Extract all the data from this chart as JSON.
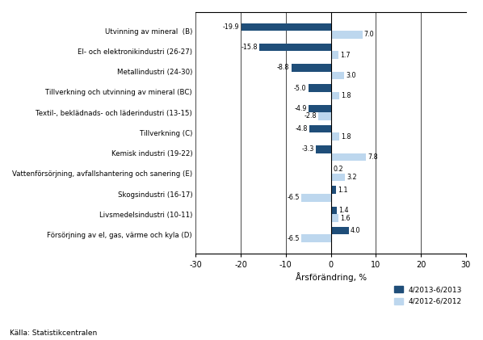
{
  "categories": [
    "Utvinning av mineral  (B)",
    "El- och elektronikindustri (26-27)",
    "Metallindustri (24-30)",
    "Tillverkning och utvinning av mineral (BC)",
    "Textil-, beklädnads- och läderindustri (13-15)",
    "Tillverkning (C)",
    "Kemisk industri (19-22)",
    "Vattenförsörjning, avfallshantering och sanering (E)",
    "Skogsindustri (16-17)",
    "Livsmedelsindustri (10-11)",
    "Försörjning av el, gas, värme och kyla (D)"
  ],
  "values_2013": [
    -19.9,
    -15.8,
    -8.8,
    -5.0,
    -4.9,
    -4.8,
    -3.3,
    0.2,
    1.1,
    1.4,
    4.0
  ],
  "values_2012": [
    7.0,
    1.7,
    3.0,
    1.8,
    -2.8,
    1.8,
    7.8,
    3.2,
    -6.5,
    1.6,
    -6.5
  ],
  "color_2013": "#1F4E79",
  "color_2012": "#BDD7EE",
  "xlabel": "Årsförändring, %",
  "legend_2013": "4/2013-6/2013",
  "legend_2012": "4/2012-6/2012",
  "source": "Källa: Statistikcentralen",
  "xlim": [
    -30,
    30
  ],
  "xticks": [
    -30,
    -20,
    -10,
    0,
    10,
    20,
    30
  ],
  "bar_height": 0.38
}
